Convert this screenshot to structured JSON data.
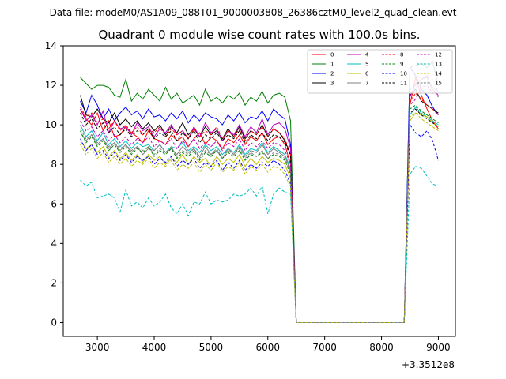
{
  "header": {
    "suptitle": "Data file: modeM0/AS1A09_088T01_9000003808_26386cztM0_level2_quad_clean.evt"
  },
  "chart_data": {
    "type": "line",
    "title": "Quadrant 0 module wise count rates with 100.0s bins.",
    "xlabel": "",
    "ylabel": "",
    "x_offset_label": "+3.3512e8",
    "xlim": [
      2400,
      9300
    ],
    "ylim": [
      -0.7,
      14
    ],
    "xticks": [
      3000,
      4000,
      5000,
      6000,
      7000,
      8000,
      9000
    ],
    "xtick_labels": [
      "3000",
      "4000",
      "5000",
      "6000",
      "7000",
      "8000",
      "9000"
    ],
    "yticks": [
      0,
      2,
      4,
      6,
      8,
      10,
      12,
      14
    ],
    "ytick_labels": [
      "0",
      "2",
      "4",
      "6",
      "8",
      "10",
      "12",
      "14"
    ],
    "legend_position": "top-right",
    "x_start": 2700,
    "x_step": 100,
    "gap_start": 6500,
    "gap_end": 8400,
    "post_x": [
      8500,
      8600,
      8700,
      8800,
      8900,
      9000
    ],
    "series": [
      {
        "name": "0",
        "color": "#ff0000",
        "dash": "solid",
        "pre": [
          10.8,
          10.3,
          10.0,
          10.6,
          9.7,
          10.2,
          9.4,
          9.5,
          9.9,
          9.6,
          9.4,
          9.1,
          9.7,
          9.3,
          9.2,
          9.0,
          9.5,
          9.2,
          9.4,
          8.9,
          9.3,
          9.6,
          9.0,
          9.4,
          9.2,
          8.8,
          9.3,
          9.1,
          9.5,
          9.0,
          9.4,
          9.2,
          9.6,
          9.0,
          9.3,
          9.4,
          9.0,
          8.0
        ],
        "post": [
          11.0,
          12.4,
          11.5,
          10.8,
          10.2,
          9.8
        ]
      },
      {
        "name": "1",
        "color": "#008000",
        "dash": "solid",
        "pre": [
          12.4,
          12.1,
          11.8,
          12.0,
          12.0,
          11.9,
          11.5,
          11.4,
          12.3,
          11.2,
          11.6,
          11.3,
          11.8,
          11.5,
          11.2,
          11.9,
          11.3,
          11.6,
          11.1,
          11.3,
          11.5,
          11.0,
          11.8,
          11.2,
          11.4,
          11.1,
          11.5,
          11.3,
          11.6,
          11.0,
          11.4,
          11.2,
          11.7,
          11.1,
          11.5,
          11.6,
          11.4,
          10.2
        ],
        "post": [
          12.9,
          13.0,
          13.1,
          12.9,
          13.2,
          12.0
        ]
      },
      {
        "name": "2",
        "color": "#0000ff",
        "dash": "solid",
        "pre": [
          11.2,
          10.6,
          11.5,
          11.0,
          10.3,
          10.8,
          10.2,
          10.6,
          10.9,
          10.5,
          10.7,
          10.3,
          10.8,
          10.4,
          10.5,
          10.2,
          10.6,
          10.3,
          10.7,
          10.1,
          10.5,
          10.2,
          10.6,
          10.4,
          10.3,
          10.0,
          10.5,
          10.2,
          10.6,
          10.1,
          10.4,
          10.3,
          10.7,
          10.2,
          10.8,
          10.5,
          10.3,
          9.0
        ],
        "post": [
          12.9,
          12.5,
          11.8,
          11.5,
          10.9,
          10.5
        ]
      },
      {
        "name": "3",
        "color": "#000000",
        "dash": "solid",
        "pre": [
          11.5,
          10.5,
          10.4,
          10.8,
          10.3,
          10.1,
          10.6,
          10.0,
          10.3,
          9.9,
          10.2,
          9.8,
          10.1,
          9.7,
          10.0,
          9.5,
          9.9,
          9.6,
          10.1,
          9.5,
          9.8,
          9.4,
          9.9,
          9.5,
          9.7,
          9.3,
          9.8,
          9.4,
          9.9,
          9.3,
          9.7,
          9.5,
          10.0,
          9.4,
          9.8,
          9.6,
          9.2,
          8.5
        ],
        "post": [
          11.5,
          11.8,
          11.2,
          11.0,
          10.8,
          10.6
        ]
      },
      {
        "name": "4",
        "color": "#bf00bf",
        "dash": "solid",
        "pre": [
          10.8,
          10.2,
          10.5,
          10.0,
          10.7,
          9.6,
          10.2,
          9.8,
          9.9,
          9.5,
          10.1,
          9.7,
          9.9,
          9.4,
          9.8,
          9.6,
          10.0,
          9.5,
          9.7,
          9.3,
          9.9,
          9.4,
          10.1,
          9.6,
          9.8,
          9.2,
          9.7,
          9.5,
          10.0,
          9.4,
          9.9,
          9.6,
          10.3,
          9.5,
          10.0,
          10.1,
          9.8,
          8.8
        ],
        "post": [
          11.4,
          12.1,
          12.3,
          12.5,
          11.8,
          11.5
        ]
      },
      {
        "name": "5",
        "color": "#00bfbf",
        "dash": "solid",
        "pre": [
          10.0,
          9.4,
          9.7,
          9.2,
          9.6,
          9.0,
          9.3,
          8.9,
          9.2,
          8.8,
          9.1,
          8.9,
          9.0,
          8.7,
          9.0,
          8.6,
          8.9,
          8.8,
          9.1,
          8.7,
          8.9,
          8.6,
          9.0,
          8.7,
          8.9,
          8.5,
          8.8,
          8.6,
          9.0,
          8.5,
          8.8,
          8.7,
          9.1,
          8.6,
          8.9,
          8.7,
          8.5,
          7.8
        ],
        "post": [
          10.5,
          10.9,
          10.6,
          10.4,
          10.2,
          10.0
        ]
      },
      {
        "name": "6",
        "color": "#bfbf00",
        "dash": "solid",
        "pre": [
          9.2,
          8.8,
          9.0,
          8.6,
          8.9,
          8.4,
          8.7,
          8.3,
          8.6,
          8.2,
          8.5,
          8.1,
          8.5,
          8.2,
          8.4,
          8.0,
          8.3,
          8.1,
          8.5,
          8.0,
          8.4,
          8.1,
          8.3,
          7.9,
          8.4,
          8.0,
          8.3,
          8.1,
          8.5,
          7.9,
          8.3,
          8.0,
          8.4,
          8.1,
          8.3,
          8.2,
          8.0,
          7.3
        ],
        "post": [
          10.2,
          10.6,
          10.5,
          10.4,
          10.1,
          9.9
        ]
      },
      {
        "name": "7",
        "color": "#808080",
        "dash": "solid",
        "pre": [
          9.6,
          9.2,
          9.5,
          9.0,
          9.3,
          8.8,
          9.1,
          8.7,
          9.0,
          8.6,
          8.9,
          8.5,
          8.8,
          8.7,
          9.0,
          8.6,
          8.8,
          8.5,
          8.9,
          8.6,
          8.8,
          8.4,
          8.9,
          8.5,
          8.7,
          8.3,
          8.8,
          8.5,
          8.9,
          8.4,
          8.7,
          8.6,
          9.0,
          8.5,
          8.8,
          8.6,
          8.4,
          7.7
        ],
        "post": [
          11.8,
          12.0,
          12.3,
          12.4,
          11.9,
          11.7
        ]
      },
      {
        "name": "8",
        "color": "#ff0000",
        "dash": "dashed",
        "pre": [
          10.9,
          10.4,
          10.6,
          10.1,
          10.3,
          9.8,
          10.2,
          9.7,
          10.0,
          9.6,
          9.9,
          9.5,
          9.8,
          9.6,
          9.9,
          9.4,
          9.8,
          9.5,
          9.7,
          9.3,
          9.8,
          9.4,
          9.7,
          9.5,
          9.9,
          9.3,
          9.7,
          9.4,
          9.8,
          9.2,
          9.7,
          9.5,
          9.9,
          9.4,
          9.8,
          9.6,
          9.3,
          8.5
        ],
        "post": [
          11.2,
          11.6,
          11.3,
          11.0,
          10.8,
          10.5
        ]
      },
      {
        "name": "9",
        "color": "#008000",
        "dash": "dashed",
        "pre": [
          9.7,
          9.1,
          9.4,
          8.9,
          9.2,
          8.7,
          9.0,
          8.6,
          8.9,
          8.5,
          8.8,
          8.6,
          8.9,
          8.4,
          8.7,
          8.5,
          8.8,
          8.3,
          8.6,
          8.4,
          8.7,
          8.2,
          8.6,
          8.4,
          8.7,
          8.3,
          8.6,
          8.4,
          8.7,
          8.2,
          8.5,
          8.4,
          8.6,
          8.3,
          8.5,
          8.4,
          8.2,
          7.5
        ],
        "post": [
          10.8,
          11.0,
          10.7,
          10.5,
          10.3,
          10.1
        ]
      },
      {
        "name": "10",
        "color": "#0000ff",
        "dash": "dashed",
        "pre": [
          9.3,
          8.7,
          9.0,
          8.5,
          8.7,
          8.3,
          8.6,
          8.2,
          8.5,
          8.1,
          8.4,
          8.2,
          8.4,
          8.0,
          8.3,
          8.1,
          8.4,
          7.9,
          8.2,
          8.0,
          8.3,
          7.8,
          8.1,
          7.9,
          8.2,
          7.7,
          8.1,
          7.8,
          8.2,
          7.7,
          8.0,
          7.8,
          8.1,
          7.9,
          8.2,
          8.0,
          7.7,
          7.0
        ],
        "post": [
          10.0,
          9.6,
          9.4,
          9.7,
          9.2,
          8.2
        ]
      },
      {
        "name": "11",
        "color": "#000000",
        "dash": "dashed",
        "pre": [
          10.6,
          10.0,
          10.3,
          9.8,
          10.1,
          9.6,
          9.9,
          9.5,
          9.8,
          9.4,
          9.7,
          9.5,
          9.8,
          9.3,
          9.6,
          9.4,
          9.7,
          9.2,
          9.6,
          9.3,
          9.7,
          9.1,
          9.5,
          9.3,
          9.6,
          9.2,
          9.5,
          9.3,
          9.7,
          9.1,
          9.5,
          9.3,
          9.6,
          9.2,
          9.5,
          9.4,
          9.1,
          8.4
        ],
        "post": [
          10.6,
          10.8,
          10.5,
          10.3,
          10.1,
          9.9
        ]
      },
      {
        "name": "12",
        "color": "#bf00bf",
        "dash": "dashed",
        "pre": [
          10.2,
          9.7,
          9.9,
          9.4,
          9.7,
          9.2,
          9.5,
          9.1,
          9.4,
          9.0,
          9.3,
          9.1,
          9.4,
          8.9,
          9.2,
          9.0,
          9.3,
          8.8,
          9.2,
          8.9,
          9.3,
          8.8,
          9.1,
          8.9,
          9.2,
          8.7,
          9.1,
          8.9,
          9.3,
          8.7,
          9.1,
          8.9,
          9.2,
          8.8,
          9.1,
          9.0,
          8.7,
          8.0
        ],
        "post": [
          11.0,
          11.3,
          11.9,
          12.0,
          11.6,
          11.9
        ]
      },
      {
        "name": "13",
        "color": "#00bfbf",
        "dash": "dashed",
        "pre": [
          7.2,
          6.9,
          7.1,
          6.3,
          6.4,
          6.5,
          6.3,
          5.6,
          6.7,
          5.9,
          6.1,
          5.8,
          6.3,
          5.9,
          6.1,
          6.5,
          5.8,
          5.5,
          6.0,
          5.4,
          6.1,
          6.0,
          6.6,
          6.0,
          6.2,
          6.1,
          6.2,
          6.5,
          6.4,
          6.5,
          6.8,
          6.4,
          6.9,
          5.5,
          6.5,
          6.8,
          6.6,
          6.5
        ],
        "post": [
          7.5,
          7.9,
          7.8,
          7.4,
          7.0,
          6.9
        ]
      },
      {
        "name": "14",
        "color": "#bfbf00",
        "dash": "dashed",
        "pre": [
          9.0,
          8.5,
          8.8,
          8.3,
          8.6,
          8.1,
          8.4,
          8.0,
          8.3,
          7.9,
          8.2,
          8.0,
          8.3,
          7.8,
          8.1,
          7.9,
          8.2,
          7.7,
          8.0,
          7.8,
          8.1,
          7.6,
          8.0,
          7.7,
          8.1,
          7.6,
          7.9,
          7.7,
          8.1,
          7.5,
          7.9,
          7.7,
          8.0,
          7.6,
          7.9,
          7.8,
          7.5,
          6.8
        ],
        "post": [
          10.4,
          10.6,
          10.3,
          10.1,
          9.9,
          9.7
        ]
      },
      {
        "name": "15",
        "color": "#808080",
        "dash": "dashed",
        "pre": [
          9.8,
          9.3,
          9.5,
          9.1,
          9.3,
          8.9,
          9.1,
          8.8,
          9.0,
          8.7,
          8.9,
          8.7,
          8.9,
          8.5,
          8.8,
          8.6,
          8.9,
          8.4,
          8.7,
          8.5,
          8.8,
          8.3,
          8.7,
          8.5,
          8.8,
          8.3,
          8.7,
          8.5,
          8.8,
          8.3,
          8.6,
          8.4,
          8.7,
          8.3,
          8.6,
          8.5,
          8.3,
          7.6
        ],
        "post": [
          11.6,
          11.9,
          12.1,
          12.2,
          11.8,
          11.4
        ]
      }
    ]
  }
}
